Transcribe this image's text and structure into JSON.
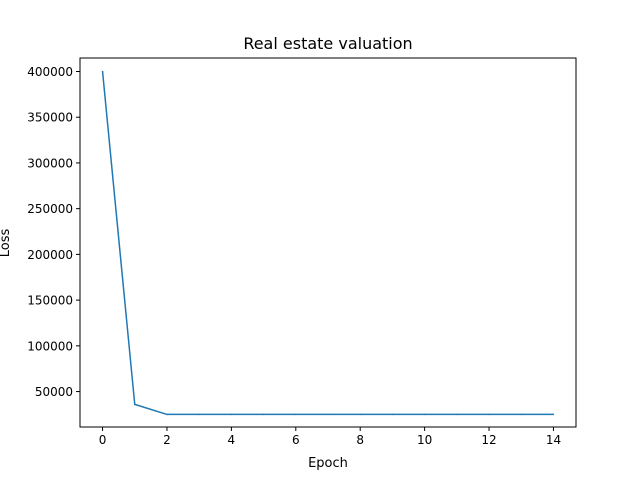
{
  "chart_data": {
    "type": "line",
    "title": "Real estate valuation",
    "xlabel": "Epoch",
    "ylabel": "Loss",
    "xlim": [
      -0.7,
      14.7
    ],
    "ylim": [
      11250,
      414750
    ],
    "xticks": [
      0,
      2,
      4,
      6,
      8,
      10,
      12,
      14
    ],
    "yticks": [
      50000,
      100000,
      150000,
      200000,
      250000,
      300000,
      350000,
      400000
    ],
    "grid": false,
    "legend": "none",
    "series": [
      {
        "color": "#1f77b4",
        "x": [
          0,
          1,
          2,
          3,
          4,
          5,
          6,
          7,
          8,
          9,
          10,
          11,
          12,
          13,
          14
        ],
        "values": [
          400000,
          36000,
          25000,
          25000,
          25000,
          25000,
          25000,
          25000,
          25000,
          25000,
          25000,
          25000,
          25000,
          25000,
          25000
        ]
      }
    ]
  }
}
